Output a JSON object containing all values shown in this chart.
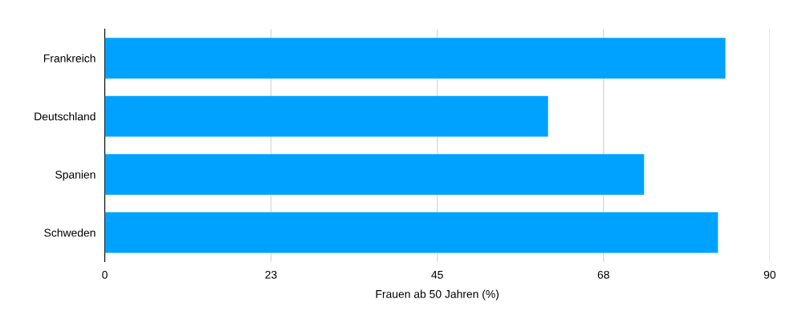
{
  "chart_data": {
    "type": "bar",
    "orientation": "horizontal",
    "xlabel": "Frauen ab 50 Jahren (%)",
    "categories": [
      "Frankreich",
      "Deutschland",
      "Spanien",
      "Schweden"
    ],
    "values": [
      84,
      60,
      73,
      83
    ],
    "color": "#00a2ff",
    "xlim": [
      0,
      90
    ],
    "xticks": [
      0,
      {
        "value": 22.5,
        "label": "23"
      },
      45,
      {
        "value": 67.5,
        "label": "68"
      },
      90
    ],
    "grid": "x"
  }
}
